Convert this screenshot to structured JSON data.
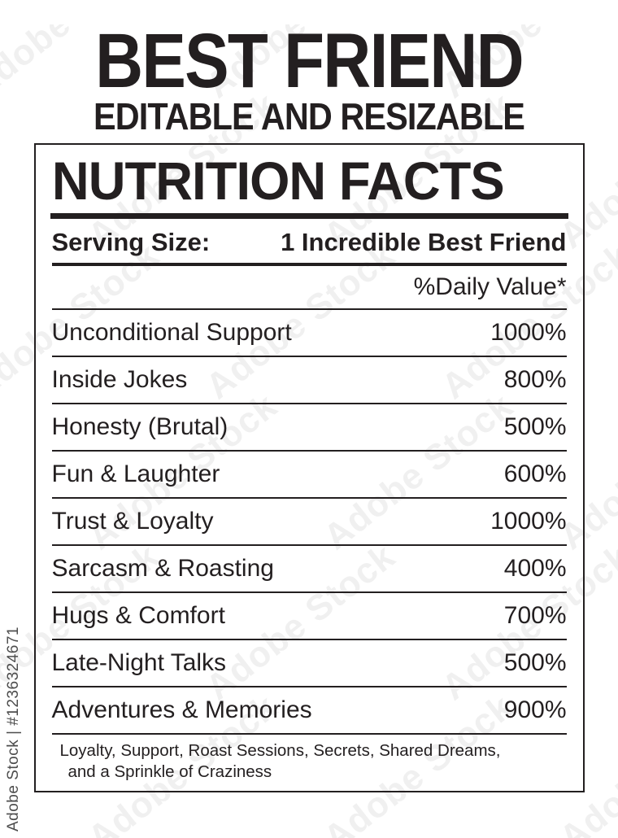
{
  "header": {
    "title": "BEST FRIEND",
    "subtitle": "EDITABLE AND RESIZABLE"
  },
  "label": {
    "heading": "NUTRITION FACTS",
    "serving": {
      "label": "Serving Size:",
      "value": "1 Incredible Best Friend"
    },
    "daily_value_header": "%Daily Value*",
    "rows": [
      {
        "name": "Unconditional Support",
        "value": "1000%"
      },
      {
        "name": "Inside Jokes",
        "value": "800%"
      },
      {
        "name": "Honesty (Brutal)",
        "value": "500%"
      },
      {
        "name": "Fun & Laughter",
        "value": "600%"
      },
      {
        "name": "Trust & Loyalty",
        "value": "1000%"
      },
      {
        "name": "Sarcasm & Roasting",
        "value": "400%"
      },
      {
        "name": "Hugs & Comfort",
        "value": "700%"
      },
      {
        "name": "Late-Night Talks",
        "value": "500%"
      },
      {
        "name": "Adventures & Memories",
        "value": "900%"
      }
    ],
    "footer_line1": "Loyalty, Support, Roast Sessions, Secrets, Shared Dreams,",
    "footer_line2": "and a Sprinkle of Craziness"
  },
  "watermark": {
    "tile_text": "Adobe Stock",
    "side_text": "Adobe Stock | #1236324671"
  },
  "colors": {
    "text": "#231f20",
    "tile_watermark": "rgba(35,31,32,0.065)",
    "side_watermark": "#4d4d4d"
  }
}
